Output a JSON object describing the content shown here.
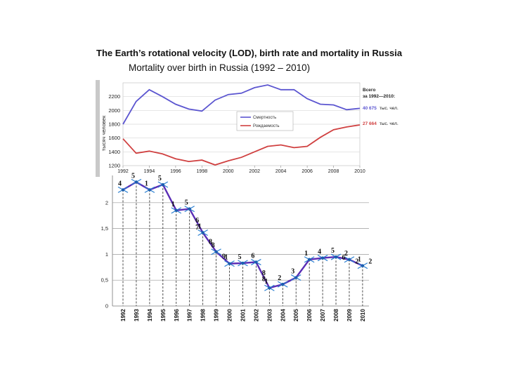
{
  "title": "The Earth’s rotational velocity (LOD), birth rate and mortality in Russia",
  "subtitle": "Mortality over birth in Russia (1992 – 2010)",
  "chart_data": [
    {
      "type": "line",
      "ylabel": "тысяч человек",
      "ylim": [
        1200,
        2400
      ],
      "yticks": [
        1200,
        1400,
        1600,
        1800,
        2000,
        2200
      ],
      "xticks": [
        "1992",
        "1994",
        "1996",
        "1998",
        "2000",
        "2002",
        "2004",
        "2006",
        "2008",
        "2010"
      ],
      "x": [
        1992,
        1993,
        1994,
        1995,
        1996,
        1997,
        1998,
        1999,
        2000,
        2001,
        2002,
        2003,
        2004,
        2005,
        2006,
        2007,
        2008,
        2009,
        2010
      ],
      "series": [
        {
          "name": "Смертность",
          "color": "#5b55d0",
          "values": [
            1800,
            2130,
            2300,
            2200,
            2090,
            2020,
            1990,
            2150,
            2230,
            2250,
            2330,
            2370,
            2300,
            2300,
            2170,
            2090,
            2080,
            2010,
            2030
          ]
        },
        {
          "name": "Рождаемость",
          "color": "#d04040",
          "values": [
            1590,
            1380,
            1410,
            1370,
            1300,
            1260,
            1280,
            1210,
            1270,
            1320,
            1400,
            1480,
            1500,
            1460,
            1480,
            1610,
            1720,
            1760,
            1790
          ]
        }
      ],
      "side_note": {
        "header_1": "Всего",
        "header_2": "за 1992—2010:",
        "death_total": "40 675",
        "birth_total": "27 664",
        "unit": "тыс. чел."
      }
    },
    {
      "type": "line",
      "ylim": [
        0,
        2.5
      ],
      "yticks": [
        "0",
        "0,5",
        "1",
        "1,5",
        "2"
      ],
      "xticks": [
        "1992",
        "1993",
        "1994",
        "1995",
        "1996",
        "1997",
        "1998",
        "1999",
        "2000",
        "2001",
        "2002",
        "2003",
        "2004",
        "2005",
        "2006",
        "2007",
        "2008",
        "2009",
        "2010"
      ],
      "series": [
        {
          "name": "LOD",
          "color": "#5a2db5",
          "values": [
            2.25,
            2.4,
            2.25,
            2.35,
            1.85,
            1.88,
            1.42,
            1.05,
            0.82,
            0.83,
            0.85,
            0.35,
            0.42,
            0.55,
            0.9,
            0.93,
            0.95,
            0.9,
            0.78
          ]
        }
      ],
      "point_labels": [
        {
          "x": "1992",
          "y": 2.25,
          "label": "4"
        },
        {
          "x": "1993",
          "y": 2.4,
          "label": "5"
        },
        {
          "x": "1994",
          "y": 2.25,
          "label": "1"
        },
        {
          "x": "1995",
          "y": 2.35,
          "label": "5"
        },
        {
          "x": "1996",
          "y": 1.85,
          "label": "1"
        },
        {
          "x": "1997",
          "y": 1.88,
          "label": "5"
        },
        {
          "x": "1998",
          "y": 1.42,
          "label": "1"
        },
        {
          "x": "1999",
          "y": 1.05,
          "label": "8"
        },
        {
          "x": "2000",
          "y": 0.82,
          "label": "1"
        },
        {
          "x": "2001",
          "y": 0.83,
          "label": "5"
        },
        {
          "x": "2002",
          "y": 0.85,
          "label": "6"
        },
        {
          "x": "2003",
          "y": 0.35,
          "label": "1"
        },
        {
          "x": "2004",
          "y": 0.42,
          "label": "2"
        },
        {
          "x": "2005",
          "y": 0.55,
          "label": "3"
        },
        {
          "x": "2006",
          "y": 0.9,
          "label": "1"
        },
        {
          "x": "2007",
          "y": 0.93,
          "label": "4"
        },
        {
          "x": "2008",
          "y": 0.95,
          "label": "5"
        },
        {
          "x": "2009",
          "y": 0.9,
          "label": "2"
        },
        {
          "x": "2010",
          "y": 0.78,
          "label": "1"
        }
      ],
      "between_labels": [
        {
          "after": "1997",
          "y": 1.66,
          "label": "6"
        },
        {
          "after": "1997",
          "y": 1.52,
          "label": "7"
        },
        {
          "after": "1998",
          "y": 1.24,
          "label": "8"
        },
        {
          "after": "1999",
          "y": 0.96,
          "label": "9"
        },
        {
          "after": "2002",
          "y": 0.64,
          "label": "8"
        },
        {
          "after": "2002",
          "y": 0.52,
          "label": "8"
        },
        {
          "after": "2008",
          "y": 0.94,
          "label": "6"
        },
        {
          "after": "2009",
          "y": 0.86,
          "label": "2"
        },
        {
          "after": "2010",
          "y": 0.86,
          "label": "2"
        }
      ]
    }
  ]
}
